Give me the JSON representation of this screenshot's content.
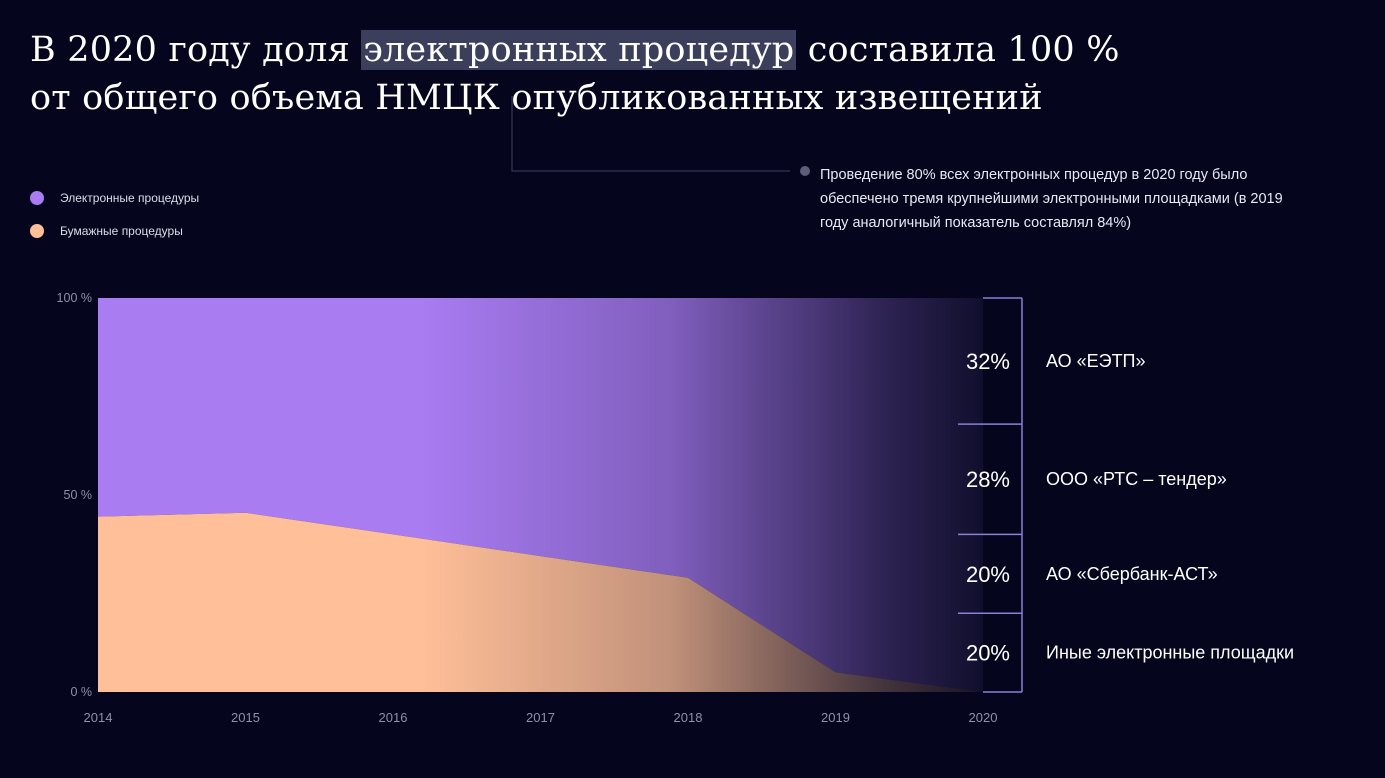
{
  "title": {
    "part1": "В 2020 году доля ",
    "highlight": "электронных процедур",
    "part2": " составила 100 %",
    "line2": "от общего объема НМЦК опубликованных извещений"
  },
  "legend": [
    {
      "label": "Электронные процедуры",
      "color": "#a97cf2"
    },
    {
      "label": "Бумажные процедуры",
      "color": "#ffbf98"
    }
  ],
  "note": "Проведение 80% всех электронных процедур в 2020 году было обеспечено тремя крупнейшими электронными площадками (в 2019 году аналогичный показатель составлял 84%)",
  "chart_data": {
    "type": "area",
    "stacked": true,
    "x": [
      2014,
      2015,
      2016,
      2017,
      2018,
      2019,
      2020
    ],
    "series": [
      {
        "name": "Бумажные процедуры",
        "values": [
          44.5,
          45.5,
          40,
          34.5,
          29,
          5,
          0
        ],
        "color": "#ffbf98"
      },
      {
        "name": "Электронные процедуры",
        "values": [
          55.5,
          54.5,
          60,
          65.5,
          71,
          95,
          100
        ],
        "color": "#a97cf2"
      }
    ],
    "y_ticks": [
      "0 %",
      "50 %",
      "100 %"
    ],
    "ylim": [
      0,
      100
    ],
    "breakdown_2020": [
      {
        "value": "32%",
        "label": "АО «ЕЭТП»",
        "share": 32
      },
      {
        "value": "28%",
        "label": "ООО «РТС – тендер»",
        "share": 28
      },
      {
        "value": "20%",
        "label": "АО «Сбербанк-АСТ»",
        "share": 20
      },
      {
        "value": "20%",
        "label": "Иные электронные площадки",
        "share": 20
      }
    ]
  }
}
